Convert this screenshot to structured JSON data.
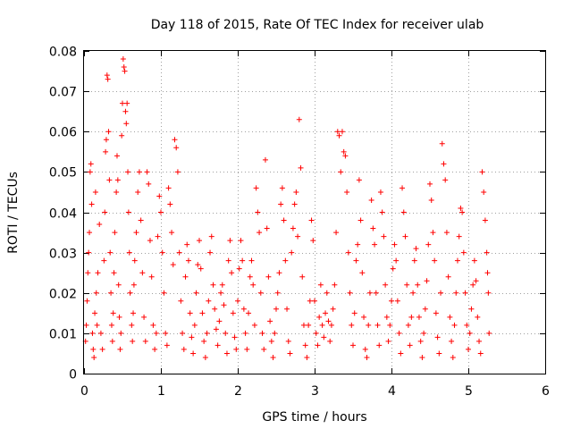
{
  "chart_data": {
    "type": "scatter",
    "title": "Day 118 of 2015, Rate Of TEC Index for receiver ulab",
    "xlabel": "GPS time / hours",
    "ylabel": "ROTI / TECUs",
    "xlim": [
      0,
      6
    ],
    "ylim": [
      0,
      0.08
    ],
    "xticks": [
      "0",
      "1",
      "2",
      "3",
      "4",
      "5",
      "6"
    ],
    "yticks": [
      "0",
      "0.01",
      "0.02",
      "0.03",
      "0.04",
      "0.05",
      "0.06",
      "0.07",
      "0.08"
    ],
    "grid": true,
    "marker": "+",
    "color": "#ff0000",
    "series": [
      {
        "name": "ROTI",
        "points": [
          [
            0.02,
            0.008
          ],
          [
            0.03,
            0.012
          ],
          [
            0.04,
            0.018
          ],
          [
            0.05,
            0.025
          ],
          [
            0.06,
            0.03
          ],
          [
            0.07,
            0.035
          ],
          [
            0.08,
            0.05
          ],
          [
            0.09,
            0.052
          ],
          [
            0.1,
            0.042
          ],
          [
            0.11,
            0.01
          ],
          [
            0.12,
            0.006
          ],
          [
            0.13,
            0.004
          ],
          [
            0.14,
            0.015
          ],
          [
            0.15,
            0.045
          ],
          [
            0.16,
            0.02
          ],
          [
            0.17,
            0.012
          ],
          [
            0.18,
            0.025
          ],
          [
            0.2,
            0.037
          ],
          [
            0.22,
            0.01
          ],
          [
            0.24,
            0.006
          ],
          [
            0.26,
            0.028
          ],
          [
            0.27,
            0.04
          ],
          [
            0.28,
            0.055
          ],
          [
            0.29,
            0.058
          ],
          [
            0.3,
            0.074
          ],
          [
            0.31,
            0.073
          ],
          [
            0.32,
            0.06
          ],
          [
            0.33,
            0.048
          ],
          [
            0.34,
            0.03
          ],
          [
            0.35,
            0.02
          ],
          [
            0.36,
            0.012
          ],
          [
            0.37,
            0.008
          ],
          [
            0.38,
            0.015
          ],
          [
            0.39,
            0.025
          ],
          [
            0.4,
            0.035
          ],
          [
            0.42,
            0.045
          ],
          [
            0.43,
            0.054
          ],
          [
            0.44,
            0.048
          ],
          [
            0.45,
            0.022
          ],
          [
            0.46,
            0.014
          ],
          [
            0.47,
            0.006
          ],
          [
            0.48,
            0.01
          ],
          [
            0.49,
            0.059
          ],
          [
            0.5,
            0.067
          ],
          [
            0.51,
            0.078
          ],
          [
            0.52,
            0.076
          ],
          [
            0.53,
            0.075
          ],
          [
            0.54,
            0.065
          ],
          [
            0.55,
            0.062
          ],
          [
            0.56,
            0.067
          ],
          [
            0.57,
            0.05
          ],
          [
            0.58,
            0.04
          ],
          [
            0.59,
            0.03
          ],
          [
            0.6,
            0.02
          ],
          [
            0.62,
            0.012
          ],
          [
            0.63,
            0.008
          ],
          [
            0.64,
            0.015
          ],
          [
            0.65,
            0.022
          ],
          [
            0.66,
            0.028
          ],
          [
            0.68,
            0.035
          ],
          [
            0.7,
            0.045
          ],
          [
            0.72,
            0.05
          ],
          [
            0.74,
            0.038
          ],
          [
            0.76,
            0.025
          ],
          [
            0.78,
            0.014
          ],
          [
            0.8,
            0.008
          ],
          [
            0.82,
            0.05
          ],
          [
            0.84,
            0.047
          ],
          [
            0.86,
            0.033
          ],
          [
            0.88,
            0.024
          ],
          [
            0.9,
            0.012
          ],
          [
            0.92,
            0.006
          ],
          [
            0.94,
            0.01
          ],
          [
            0.96,
            0.034
          ],
          [
            0.98,
            0.044
          ],
          [
            1.0,
            0.04
          ],
          [
            1.02,
            0.03
          ],
          [
            1.04,
            0.02
          ],
          [
            1.06,
            0.01
          ],
          [
            1.08,
            0.007
          ],
          [
            1.1,
            0.046
          ],
          [
            1.12,
            0.042
          ],
          [
            1.14,
            0.035
          ],
          [
            1.16,
            0.027
          ],
          [
            1.18,
            0.058
          ],
          [
            1.2,
            0.056
          ],
          [
            1.22,
            0.05
          ],
          [
            1.24,
            0.03
          ],
          [
            1.26,
            0.018
          ],
          [
            1.28,
            0.01
          ],
          [
            1.3,
            0.006
          ],
          [
            1.32,
            0.024
          ],
          [
            1.34,
            0.032
          ],
          [
            1.36,
            0.028
          ],
          [
            1.38,
            0.015
          ],
          [
            1.4,
            0.009
          ],
          [
            1.42,
            0.005
          ],
          [
            1.44,
            0.012
          ],
          [
            1.46,
            0.02
          ],
          [
            1.48,
            0.027
          ],
          [
            1.5,
            0.033
          ],
          [
            1.52,
            0.026
          ],
          [
            1.54,
            0.015
          ],
          [
            1.56,
            0.008
          ],
          [
            1.58,
            0.004
          ],
          [
            1.6,
            0.01
          ],
          [
            1.62,
            0.018
          ],
          [
            1.64,
            0.03
          ],
          [
            1.66,
            0.034
          ],
          [
            1.68,
            0.022
          ],
          [
            1.7,
            0.016
          ],
          [
            1.72,
            0.011
          ],
          [
            1.74,
            0.007
          ],
          [
            1.76,
            0.013
          ],
          [
            1.78,
            0.02
          ],
          [
            1.8,
            0.022
          ],
          [
            1.82,
            0.017
          ],
          [
            1.84,
            0.01
          ],
          [
            1.86,
            0.005
          ],
          [
            1.88,
            0.028
          ],
          [
            1.9,
            0.033
          ],
          [
            1.92,
            0.025
          ],
          [
            1.94,
            0.015
          ],
          [
            1.96,
            0.009
          ],
          [
            1.98,
            0.006
          ],
          [
            2.0,
            0.018
          ],
          [
            2.02,
            0.026
          ],
          [
            2.04,
            0.033
          ],
          [
            2.06,
            0.028
          ],
          [
            2.08,
            0.016
          ],
          [
            2.1,
            0.01
          ],
          [
            2.12,
            0.006
          ],
          [
            2.14,
            0.015
          ],
          [
            2.16,
            0.024
          ],
          [
            2.18,
            0.028
          ],
          [
            2.2,
            0.022
          ],
          [
            2.22,
            0.012
          ],
          [
            2.24,
            0.046
          ],
          [
            2.26,
            0.04
          ],
          [
            2.28,
            0.035
          ],
          [
            2.3,
            0.02
          ],
          [
            2.32,
            0.01
          ],
          [
            2.34,
            0.006
          ],
          [
            2.36,
            0.053
          ],
          [
            2.38,
            0.036
          ],
          [
            2.4,
            0.024
          ],
          [
            2.42,
            0.013
          ],
          [
            2.44,
            0.008
          ],
          [
            2.46,
            0.004
          ],
          [
            2.48,
            0.01
          ],
          [
            2.5,
            0.016
          ],
          [
            2.52,
            0.02
          ],
          [
            2.54,
            0.025
          ],
          [
            2.56,
            0.042
          ],
          [
            2.58,
            0.046
          ],
          [
            2.6,
            0.038
          ],
          [
            2.62,
            0.028
          ],
          [
            2.64,
            0.016
          ],
          [
            2.66,
            0.008
          ],
          [
            2.68,
            0.005
          ],
          [
            2.7,
            0.03
          ],
          [
            2.72,
            0.036
          ],
          [
            2.74,
            0.042
          ],
          [
            2.76,
            0.045
          ],
          [
            2.78,
            0.034
          ],
          [
            2.8,
            0.063
          ],
          [
            2.82,
            0.051
          ],
          [
            2.84,
            0.024
          ],
          [
            2.86,
            0.012
          ],
          [
            2.88,
            0.007
          ],
          [
            2.9,
            0.004
          ],
          [
            2.92,
            0.012
          ],
          [
            2.94,
            0.018
          ],
          [
            2.96,
            0.038
          ],
          [
            2.98,
            0.033
          ],
          [
            3.0,
            0.018
          ],
          [
            3.02,
            0.01
          ],
          [
            3.04,
            0.007
          ],
          [
            3.06,
            0.014
          ],
          [
            3.08,
            0.022
          ],
          [
            3.1,
            0.012
          ],
          [
            3.12,
            0.009
          ],
          [
            3.14,
            0.015
          ],
          [
            3.16,
            0.02
          ],
          [
            3.18,
            0.013
          ],
          [
            3.2,
            0.008
          ],
          [
            3.22,
            0.012
          ],
          [
            3.24,
            0.016
          ],
          [
            3.26,
            0.022
          ],
          [
            3.28,
            0.035
          ],
          [
            3.3,
            0.06
          ],
          [
            3.32,
            0.059
          ],
          [
            3.34,
            0.05
          ],
          [
            3.36,
            0.06
          ],
          [
            3.38,
            0.055
          ],
          [
            3.4,
            0.054
          ],
          [
            3.42,
            0.045
          ],
          [
            3.44,
            0.03
          ],
          [
            3.46,
            0.02
          ],
          [
            3.48,
            0.012
          ],
          [
            3.5,
            0.007
          ],
          [
            3.52,
            0.015
          ],
          [
            3.54,
            0.028
          ],
          [
            3.56,
            0.032
          ],
          [
            3.58,
            0.048
          ],
          [
            3.6,
            0.038
          ],
          [
            3.62,
            0.025
          ],
          [
            3.64,
            0.014
          ],
          [
            3.66,
            0.006
          ],
          [
            3.68,
            0.004
          ],
          [
            3.7,
            0.012
          ],
          [
            3.72,
            0.02
          ],
          [
            3.74,
            0.043
          ],
          [
            3.76,
            0.036
          ],
          [
            3.78,
            0.032
          ],
          [
            3.8,
            0.02
          ],
          [
            3.82,
            0.012
          ],
          [
            3.84,
            0.007
          ],
          [
            3.86,
            0.045
          ],
          [
            3.88,
            0.04
          ],
          [
            3.9,
            0.034
          ],
          [
            3.92,
            0.022
          ],
          [
            3.94,
            0.014
          ],
          [
            3.96,
            0.008
          ],
          [
            3.98,
            0.012
          ],
          [
            4.0,
            0.018
          ],
          [
            4.02,
            0.026
          ],
          [
            4.04,
            0.032
          ],
          [
            4.06,
            0.028
          ],
          [
            4.08,
            0.018
          ],
          [
            4.1,
            0.01
          ],
          [
            4.12,
            0.005
          ],
          [
            4.14,
            0.046
          ],
          [
            4.16,
            0.04
          ],
          [
            4.18,
            0.034
          ],
          [
            4.2,
            0.022
          ],
          [
            4.22,
            0.012
          ],
          [
            4.24,
            0.007
          ],
          [
            4.26,
            0.014
          ],
          [
            4.28,
            0.02
          ],
          [
            4.3,
            0.028
          ],
          [
            4.32,
            0.031
          ],
          [
            4.34,
            0.022
          ],
          [
            4.36,
            0.014
          ],
          [
            4.38,
            0.008
          ],
          [
            4.4,
            0.004
          ],
          [
            4.42,
            0.01
          ],
          [
            4.44,
            0.016
          ],
          [
            4.46,
            0.023
          ],
          [
            4.48,
            0.032
          ],
          [
            4.5,
            0.047
          ],
          [
            4.52,
            0.043
          ],
          [
            4.54,
            0.035
          ],
          [
            4.56,
            0.028
          ],
          [
            4.58,
            0.015
          ],
          [
            4.6,
            0.009
          ],
          [
            4.62,
            0.005
          ],
          [
            4.64,
            0.02
          ],
          [
            4.66,
            0.057
          ],
          [
            4.68,
            0.052
          ],
          [
            4.7,
            0.048
          ],
          [
            4.72,
            0.035
          ],
          [
            4.74,
            0.024
          ],
          [
            4.76,
            0.014
          ],
          [
            4.78,
            0.008
          ],
          [
            4.8,
            0.004
          ],
          [
            4.82,
            0.012
          ],
          [
            4.84,
            0.02
          ],
          [
            4.86,
            0.028
          ],
          [
            4.88,
            0.034
          ],
          [
            4.9,
            0.041
          ],
          [
            4.92,
            0.04
          ],
          [
            4.94,
            0.03
          ],
          [
            4.96,
            0.02
          ],
          [
            4.98,
            0.012
          ],
          [
            5.0,
            0.006
          ],
          [
            5.02,
            0.01
          ],
          [
            5.04,
            0.016
          ],
          [
            5.06,
            0.022
          ],
          [
            5.08,
            0.028
          ],
          [
            5.1,
            0.023
          ],
          [
            5.12,
            0.014
          ],
          [
            5.14,
            0.008
          ],
          [
            5.16,
            0.005
          ],
          [
            5.18,
            0.05
          ],
          [
            5.2,
            0.045
          ],
          [
            5.22,
            0.038
          ],
          [
            5.24,
            0.03
          ],
          [
            5.25,
            0.025
          ],
          [
            5.26,
            0.02
          ],
          [
            5.27,
            0.01
          ]
        ]
      }
    ]
  }
}
